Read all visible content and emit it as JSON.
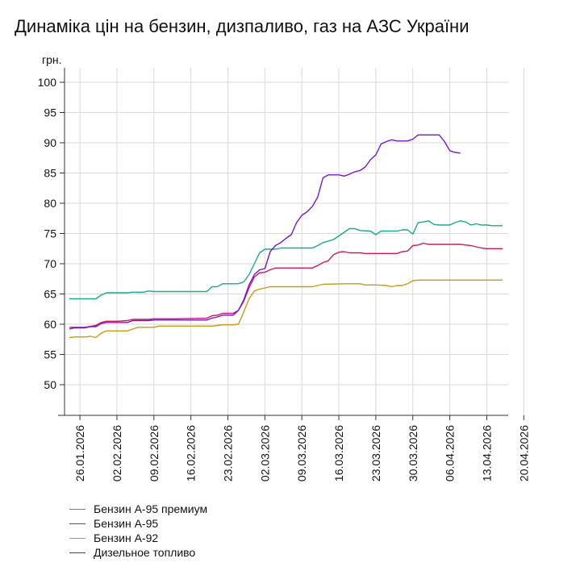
{
  "chart_data": {
    "type": "line",
    "title": "Динаміка цін на бензин, дизпаливо, газ на АЗС України",
    "ylabel": "грн.",
    "xlabel": "",
    "ylim": [
      45,
      102
    ],
    "xlim": [
      0,
      95
    ],
    "yticks": [
      50,
      55,
      60,
      65,
      70,
      75,
      80,
      85,
      90,
      95,
      100
    ],
    "grid": true,
    "legend_position": "bottom-left",
    "x_tick_labels": [
      {
        "day": 2,
        "label": "26.01.2026"
      },
      {
        "day": 9,
        "label": "02.02.2026"
      },
      {
        "day": 16,
        "label": "09.02.2026"
      },
      {
        "day": 23,
        "label": "16.02.2026"
      },
      {
        "day": 30,
        "label": "23.02.2026"
      },
      {
        "day": 37,
        "label": "02.03.2026"
      },
      {
        "day": 44,
        "label": "09.03.2026"
      },
      {
        "day": 51,
        "label": "16.03.2026"
      },
      {
        "day": 58,
        "label": "23.03.2026"
      },
      {
        "day": 65,
        "label": "30.03.2026"
      },
      {
        "day": 72,
        "label": "06.04.2026"
      },
      {
        "day": 79,
        "label": "13.04.2026"
      },
      {
        "day": 86,
        "label": "20.04.2026"
      }
    ],
    "series": [
      {
        "name": "Бензин А-95 премиум",
        "color": "#1aaa8c",
        "points": [
          [
            0,
            64.2
          ],
          [
            5,
            64.2
          ],
          [
            6,
            64.8
          ],
          [
            7,
            65.2
          ],
          [
            9,
            65.2
          ],
          [
            11,
            65.2
          ],
          [
            12,
            65.3
          ],
          [
            14,
            65.3
          ],
          [
            15,
            65.5
          ],
          [
            16,
            65.4
          ],
          [
            20,
            65.4
          ],
          [
            25,
            65.4
          ],
          [
            26,
            65.4
          ],
          [
            27,
            66.2
          ],
          [
            28,
            66.2
          ],
          [
            29,
            66.7
          ],
          [
            32,
            66.7
          ],
          [
            33,
            67.0
          ],
          [
            34,
            68.2
          ],
          [
            35,
            70.0
          ],
          [
            36,
            71.8
          ],
          [
            37,
            72.4
          ],
          [
            39,
            72.4
          ],
          [
            40,
            72.6
          ],
          [
            44,
            72.6
          ],
          [
            46,
            72.6
          ],
          [
            47,
            73.0
          ],
          [
            48,
            73.5
          ],
          [
            50,
            74.0
          ],
          [
            51,
            74.6
          ],
          [
            52,
            75.2
          ],
          [
            53,
            75.8
          ],
          [
            54,
            75.8
          ],
          [
            55,
            75.5
          ],
          [
            57,
            75.4
          ],
          [
            58,
            74.8
          ],
          [
            59,
            75.4
          ],
          [
            60,
            75.4
          ],
          [
            62,
            75.4
          ],
          [
            63,
            75.6
          ],
          [
            64,
            75.6
          ],
          [
            65,
            74.9
          ],
          [
            66,
            76.8
          ],
          [
            67,
            76.9
          ],
          [
            68,
            77.1
          ],
          [
            69,
            76.5
          ],
          [
            70,
            76.4
          ],
          [
            72,
            76.4
          ],
          [
            73,
            76.8
          ],
          [
            74,
            77.1
          ],
          [
            75,
            76.9
          ],
          [
            76,
            76.4
          ],
          [
            77,
            76.6
          ],
          [
            78,
            76.4
          ],
          [
            79,
            76.4
          ],
          [
            80,
            76.3
          ],
          [
            81,
            76.3
          ],
          [
            82,
            76.3
          ]
        ]
      },
      {
        "name": "Бензин А-95",
        "color": "#cc1a5c",
        "points": [
          [
            0,
            59.5
          ],
          [
            3,
            59.5
          ],
          [
            5,
            59.8
          ],
          [
            6,
            60.3
          ],
          [
            7,
            60.5
          ],
          [
            9,
            60.5
          ],
          [
            11,
            60.6
          ],
          [
            12,
            60.8
          ],
          [
            14,
            60.8
          ],
          [
            15,
            60.8
          ],
          [
            16,
            60.9
          ],
          [
            20,
            60.9
          ],
          [
            26,
            61.0
          ],
          [
            27,
            61.4
          ],
          [
            28,
            61.5
          ],
          [
            29,
            61.8
          ],
          [
            31,
            61.8
          ],
          [
            32,
            62.3
          ],
          [
            33,
            63.8
          ],
          [
            34,
            66.0
          ],
          [
            35,
            67.8
          ],
          [
            36,
            68.5
          ],
          [
            37,
            68.6
          ],
          [
            38,
            69.0
          ],
          [
            39,
            69.3
          ],
          [
            44,
            69.3
          ],
          [
            46,
            69.3
          ],
          [
            47,
            69.7
          ],
          [
            48,
            70.2
          ],
          [
            49,
            70.5
          ],
          [
            50,
            71.5
          ],
          [
            51,
            71.9
          ],
          [
            52,
            72.0
          ],
          [
            53,
            71.8
          ],
          [
            55,
            71.8
          ],
          [
            56,
            71.7
          ],
          [
            60,
            71.7
          ],
          [
            62,
            71.7
          ],
          [
            63,
            72.0
          ],
          [
            64,
            72.1
          ],
          [
            65,
            73.0
          ],
          [
            66,
            73.1
          ],
          [
            67,
            73.4
          ],
          [
            68,
            73.2
          ],
          [
            70,
            73.2
          ],
          [
            72,
            73.2
          ],
          [
            73,
            73.2
          ],
          [
            74,
            73.2
          ],
          [
            75,
            73.1
          ],
          [
            76,
            73.0
          ],
          [
            77,
            72.8
          ],
          [
            78,
            72.6
          ],
          [
            79,
            72.5
          ],
          [
            80,
            72.5
          ],
          [
            82,
            72.5
          ]
        ]
      },
      {
        "name": "Бензин А-92",
        "color": "#c99a14",
        "points": [
          [
            0,
            57.8
          ],
          [
            1,
            57.9
          ],
          [
            3,
            57.9
          ],
          [
            4,
            58.0
          ],
          [
            5,
            57.8
          ],
          [
            6,
            58.5
          ],
          [
            7,
            58.9
          ],
          [
            9,
            58.9
          ],
          [
            11,
            58.9
          ],
          [
            12,
            59.2
          ],
          [
            13,
            59.5
          ],
          [
            15,
            59.5
          ],
          [
            16,
            59.5
          ],
          [
            17,
            59.7
          ],
          [
            20,
            59.7
          ],
          [
            26,
            59.7
          ],
          [
            27,
            59.7
          ],
          [
            28,
            59.8
          ],
          [
            29,
            59.9
          ],
          [
            31,
            59.9
          ],
          [
            32,
            60.0
          ],
          [
            33,
            62.0
          ],
          [
            34,
            64.2
          ],
          [
            35,
            65.5
          ],
          [
            36,
            65.8
          ],
          [
            37,
            66.0
          ],
          [
            38,
            66.2
          ],
          [
            40,
            66.2
          ],
          [
            44,
            66.2
          ],
          [
            46,
            66.2
          ],
          [
            47,
            66.4
          ],
          [
            48,
            66.6
          ],
          [
            52,
            66.7
          ],
          [
            55,
            66.7
          ],
          [
            56,
            66.5
          ],
          [
            58,
            66.5
          ],
          [
            60,
            66.4
          ],
          [
            61,
            66.2
          ],
          [
            62,
            66.4
          ],
          [
            63,
            66.4
          ],
          [
            64,
            66.7
          ],
          [
            65,
            67.2
          ],
          [
            66,
            67.3
          ],
          [
            70,
            67.3
          ],
          [
            75,
            67.3
          ],
          [
            80,
            67.3
          ],
          [
            82,
            67.3
          ]
        ]
      },
      {
        "name": "Дизельное топливо",
        "color": "#7a14cc",
        "points": [
          [
            0,
            59.2
          ],
          [
            1,
            59.4
          ],
          [
            3,
            59.4
          ],
          [
            4,
            59.6
          ],
          [
            5,
            59.6
          ],
          [
            6,
            60.1
          ],
          [
            7,
            60.3
          ],
          [
            9,
            60.3
          ],
          [
            11,
            60.3
          ],
          [
            12,
            60.6
          ],
          [
            13,
            60.6
          ],
          [
            15,
            60.6
          ],
          [
            16,
            60.7
          ],
          [
            20,
            60.7
          ],
          [
            26,
            60.7
          ],
          [
            27,
            61.0
          ],
          [
            28,
            61.2
          ],
          [
            29,
            61.5
          ],
          [
            31,
            61.5
          ],
          [
            32,
            62.3
          ],
          [
            33,
            64.0
          ],
          [
            34,
            66.5
          ],
          [
            35,
            68.2
          ],
          [
            36,
            69.0
          ],
          [
            37,
            69.2
          ],
          [
            38,
            72.0
          ],
          [
            39,
            73.0
          ],
          [
            40,
            73.5
          ],
          [
            41,
            74.2
          ],
          [
            42,
            74.8
          ],
          [
            43,
            76.8
          ],
          [
            44,
            78.0
          ],
          [
            45,
            78.6
          ],
          [
            46,
            79.5
          ],
          [
            47,
            81.0
          ],
          [
            48,
            84.2
          ],
          [
            49,
            84.7
          ],
          [
            51,
            84.7
          ],
          [
            52,
            84.5
          ],
          [
            53,
            84.8
          ],
          [
            54,
            85.2
          ],
          [
            55,
            85.4
          ],
          [
            56,
            86.0
          ],
          [
            57,
            87.2
          ],
          [
            58,
            88.0
          ],
          [
            59,
            89.8
          ],
          [
            60,
            90.2
          ],
          [
            61,
            90.5
          ],
          [
            62,
            90.3
          ],
          [
            64,
            90.3
          ],
          [
            65,
            90.6
          ],
          [
            66,
            91.3
          ],
          [
            67,
            91.3
          ],
          [
            70,
            91.3
          ],
          [
            71,
            90.2
          ],
          [
            72,
            88.7
          ],
          [
            73,
            88.4
          ],
          [
            74,
            88.3
          ]
        ]
      }
    ]
  }
}
